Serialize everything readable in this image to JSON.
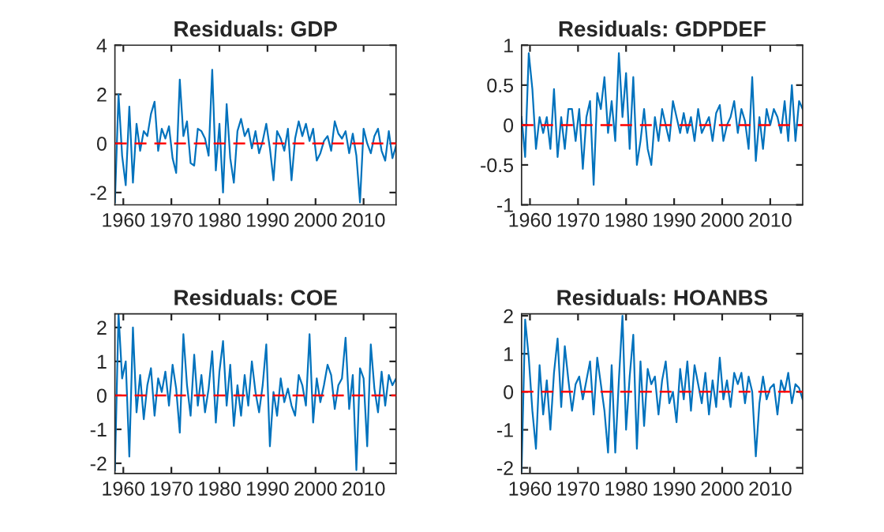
{
  "chart_data": [
    {
      "type": "line",
      "title": "Residuals: GDP",
      "x": [
        1958.25,
        1959,
        1959.75,
        1960.5,
        1961.25,
        1962,
        1962.75,
        1963.5,
        1964.25,
        1965,
        1965.75,
        1966.5,
        1967.25,
        1968,
        1968.75,
        1969.5,
        1970.25,
        1971,
        1971.75,
        1972.5,
        1973.25,
        1974,
        1974.75,
        1975.5,
        1976.25,
        1977,
        1977.75,
        1978.5,
        1979.25,
        1980,
        1980.75,
        1981.5,
        1982.25,
        1983,
        1983.75,
        1984.5,
        1985.25,
        1986,
        1986.75,
        1987.5,
        1988.25,
        1989,
        1989.75,
        1990.5,
        1991.25,
        1992,
        1992.75,
        1993.5,
        1994.25,
        1995,
        1995.75,
        1996.5,
        1997.25,
        1998,
        1998.75,
        1999.5,
        2000.25,
        2001,
        2001.75,
        2002.5,
        2003.25,
        2004,
        2004.75,
        2005.5,
        2006.25,
        2007,
        2007.75,
        2008.5,
        2009.25,
        2010,
        2010.75,
        2011.5,
        2012.25,
        2013,
        2013.75,
        2014.5,
        2015.25,
        2016,
        2016.75
      ],
      "series": [
        {
          "color": "#0072bd",
          "values": [
            -2.4,
            2.0,
            -0.5,
            -1.7,
            1.5,
            -1.6,
            0.8,
            -0.3,
            0.5,
            0.3,
            1.2,
            1.7,
            -0.3,
            0.6,
            0.2,
            0.7,
            -0.6,
            -1.2,
            2.6,
            0.3,
            0.9,
            -0.8,
            -0.9,
            0.6,
            0.5,
            0.2,
            -0.5,
            3.0,
            -1.1,
            0.8,
            -2.0,
            1.6,
            -0.6,
            -1.6,
            0.5,
            1.0,
            0.3,
            0.6,
            -0.2,
            0.5,
            -0.4,
            0.1,
            0.8,
            -0.2,
            -1.5,
            0.5,
            0.2,
            -0.3,
            0.6,
            -1.5,
            0.2,
            0.9,
            0.3,
            0.8,
            0.1,
            0.6,
            -0.7,
            -0.4,
            0.1,
            0.3,
            -0.3,
            0.9,
            0.4,
            0.2,
            0.5,
            -0.4,
            0.4,
            -0.5,
            -2.4,
            0.6,
            0.0,
            -0.4,
            0.3,
            0.6,
            -0.3,
            -0.7,
            0.5,
            -0.6,
            -0.1
          ]
        }
      ],
      "xlim": [
        1958.25,
        2016.75
      ],
      "xticks": [
        1960,
        1970,
        1980,
        1990,
        2000,
        2010
      ],
      "ylim": [
        -2.5,
        4
      ],
      "yticks": [
        -2,
        0,
        2,
        4
      ],
      "ref_lines": [
        {
          "axis": "y",
          "value": 0,
          "color": "#ff0000",
          "line_style": "dashed"
        }
      ],
      "grid": false
    },
    {
      "type": "line",
      "title": "Residuals: GDPDEF",
      "x": [
        1958.25,
        1959,
        1959.75,
        1960.5,
        1961.25,
        1962,
        1962.75,
        1963.5,
        1964.25,
        1965,
        1965.75,
        1966.5,
        1967.25,
        1968,
        1968.75,
        1969.5,
        1970.25,
        1971,
        1971.75,
        1972.5,
        1973.25,
        1974,
        1974.75,
        1975.5,
        1976.25,
        1977,
        1977.75,
        1978.5,
        1979.25,
        1980,
        1980.75,
        1981.5,
        1982.25,
        1983,
        1983.75,
        1984.5,
        1985.25,
        1986,
        1986.75,
        1987.5,
        1988.25,
        1989,
        1989.75,
        1990.5,
        1991.25,
        1992,
        1992.75,
        1993.5,
        1994.25,
        1995,
        1995.75,
        1996.5,
        1997.25,
        1998,
        1998.75,
        1999.5,
        2000.25,
        2001,
        2001.75,
        2002.5,
        2003.25,
        2004,
        2004.75,
        2005.5,
        2006.25,
        2007,
        2007.75,
        2008.5,
        2009.25,
        2010,
        2010.75,
        2011.5,
        2012.25,
        2013,
        2013.75,
        2014.5,
        2015.25,
        2016,
        2016.75
      ],
      "series": [
        {
          "color": "#0072bd",
          "values": [
            0.1,
            -0.4,
            0.9,
            0.45,
            -0.3,
            0.1,
            -0.1,
            0.1,
            -0.3,
            0.45,
            -0.4,
            0.1,
            -0.3,
            0.2,
            0.2,
            -0.2,
            0.2,
            -0.55,
            0.1,
            0.3,
            -0.75,
            0.4,
            0.2,
            0.6,
            -0.1,
            0.3,
            -0.2,
            0.9,
            0.1,
            0.65,
            -0.3,
            0.6,
            -0.5,
            -0.2,
            0.2,
            -0.3,
            -0.5,
            0.1,
            -0.2,
            0.2,
            0.0,
            -0.2,
            0.3,
            0.1,
            -0.1,
            0.15,
            -0.1,
            0.1,
            -0.2,
            0.2,
            -0.1,
            0.0,
            0.1,
            -0.2,
            0.15,
            0.25,
            -0.2,
            0.0,
            0.1,
            0.3,
            -0.1,
            0.2,
            0.05,
            -0.3,
            0.6,
            -0.45,
            0.1,
            -0.3,
            0.2,
            0.0,
            0.2,
            0.1,
            -0.1,
            0.3,
            -0.2,
            0.5,
            -0.2,
            0.3,
            0.2
          ]
        }
      ],
      "xlim": [
        1958.25,
        2016.75
      ],
      "xticks": [
        1960,
        1970,
        1980,
        1990,
        2000,
        2010
      ],
      "ylim": [
        -1,
        1
      ],
      "yticks": [
        -1,
        -0.5,
        0,
        0.5,
        1
      ],
      "ref_lines": [
        {
          "axis": "y",
          "value": 0,
          "color": "#ff0000",
          "line_style": "dashed"
        }
      ],
      "grid": false
    },
    {
      "type": "line",
      "title": "Residuals: COE",
      "x": [
        1958.25,
        1959,
        1959.75,
        1960.5,
        1961.25,
        1962,
        1962.75,
        1963.5,
        1964.25,
        1965,
        1965.75,
        1966.5,
        1967.25,
        1968,
        1968.75,
        1969.5,
        1970.25,
        1971,
        1971.75,
        1972.5,
        1973.25,
        1974,
        1974.75,
        1975.5,
        1976.25,
        1977,
        1977.75,
        1978.5,
        1979.25,
        1980,
        1980.75,
        1981.5,
        1982.25,
        1983,
        1983.75,
        1984.5,
        1985.25,
        1986,
        1986.75,
        1987.5,
        1988.25,
        1989,
        1989.75,
        1990.5,
        1991.25,
        1992,
        1992.75,
        1993.5,
        1994.25,
        1995,
        1995.75,
        1996.5,
        1997.25,
        1998,
        1998.75,
        1999.5,
        2000.25,
        2001,
        2001.75,
        2002.5,
        2003.25,
        2004,
        2004.75,
        2005.5,
        2006.25,
        2007,
        2007.75,
        2008.5,
        2009.25,
        2010,
        2010.75,
        2011.5,
        2012.25,
        2013,
        2013.75,
        2014.5,
        2015.25,
        2016,
        2016.75
      ],
      "series": [
        {
          "color": "#0072bd",
          "values": [
            -2.2,
            2.4,
            0.5,
            1.0,
            -1.8,
            2.0,
            -0.5,
            0.6,
            -0.7,
            0.3,
            0.8,
            -0.6,
            0.5,
            0.1,
            0.7,
            -0.3,
            0.9,
            0.2,
            -1.1,
            1.8,
            0.3,
            -0.6,
            1.2,
            -0.3,
            0.6,
            -0.5,
            0.2,
            1.3,
            -0.8,
            0.7,
            1.6,
            -0.3,
            0.9,
            -0.9,
            0.3,
            -0.6,
            0.6,
            -0.3,
            1.0,
            0.1,
            -0.5,
            0.3,
            1.5,
            -1.5,
            0.1,
            -0.6,
            0.5,
            -0.2,
            0.2,
            -0.3,
            -0.6,
            0.6,
            0.3,
            -0.3,
            1.8,
            -0.8,
            0.5,
            -0.2,
            0.3,
            0.9,
            0.6,
            -0.4,
            0.3,
            0.5,
            1.7,
            -0.4,
            0.6,
            -2.2,
            0.8,
            0.5,
            -1.5,
            1.5,
            0.2,
            -0.5,
            0.7,
            -0.3,
            0.6,
            0.3,
            0.5
          ]
        }
      ],
      "xlim": [
        1958.25,
        2016.75
      ],
      "xticks": [
        1960,
        1970,
        1980,
        1990,
        2000,
        2010
      ],
      "ylim": [
        -2.3,
        2.4
      ],
      "yticks": [
        -2,
        -1,
        0,
        1,
        2
      ],
      "ref_lines": [
        {
          "axis": "y",
          "value": 0,
          "color": "#ff0000",
          "line_style": "dashed"
        }
      ],
      "grid": false
    },
    {
      "type": "line",
      "title": "Residuals: HOANBS",
      "x": [
        1958.25,
        1959,
        1959.75,
        1960.5,
        1961.25,
        1962,
        1962.75,
        1963.5,
        1964.25,
        1965,
        1965.75,
        1966.5,
        1967.25,
        1968,
        1968.75,
        1969.5,
        1970.25,
        1971,
        1971.75,
        1972.5,
        1973.25,
        1974,
        1974.75,
        1975.5,
        1976.25,
        1977,
        1977.75,
        1978.5,
        1979.25,
        1980,
        1980.75,
        1981.5,
        1982.25,
        1983,
        1983.75,
        1984.5,
        1985.25,
        1986,
        1986.75,
        1987.5,
        1988.25,
        1989,
        1989.75,
        1990.5,
        1991.25,
        1992,
        1992.75,
        1993.5,
        1994.25,
        1995,
        1995.75,
        1996.5,
        1997.25,
        1998,
        1998.75,
        1999.5,
        2000.25,
        2001,
        2001.75,
        2002.5,
        2003.25,
        2004,
        2004.75,
        2005.5,
        2006.25,
        2007,
        2007.75,
        2008.5,
        2009.25,
        2010,
        2010.75,
        2011.5,
        2012.25,
        2013,
        2013.75,
        2014.5,
        2015.25,
        2016,
        2016.75
      ],
      "series": [
        {
          "color": "#0072bd",
          "values": [
            -2.1,
            1.9,
            0.9,
            -0.5,
            -1.5,
            0.7,
            -0.6,
            0.3,
            -1.0,
            0.5,
            1.4,
            -0.4,
            1.2,
            0.3,
            -0.5,
            0.2,
            0.4,
            -0.2,
            0.3,
            0.8,
            -0.6,
            0.9,
            0.2,
            -0.5,
            -1.6,
            0.7,
            -1.6,
            0.3,
            2.0,
            -1.0,
            0.4,
            1.5,
            -1.5,
            0.8,
            -0.9,
            0.6,
            0.2,
            0.4,
            -0.6,
            0.3,
            0.8,
            -0.3,
            0.0,
            -0.8,
            0.6,
            -0.2,
            0.8,
            -0.5,
            0.7,
            0.2,
            -0.3,
            0.5,
            -0.6,
            0.3,
            -0.4,
            0.9,
            -0.2,
            0.3,
            -0.4,
            0.5,
            0.2,
            0.5,
            -0.3,
            0.4,
            0.0,
            -1.7,
            -0.3,
            0.4,
            -0.2,
            0.1,
            0.2,
            -0.6,
            0.3,
            0.0,
            0.5,
            -0.3,
            0.2,
            0.1,
            -0.2
          ]
        }
      ],
      "xlim": [
        1958.25,
        2016.75
      ],
      "xticks": [
        1960,
        1970,
        1980,
        1990,
        2000,
        2010
      ],
      "ylim": [
        -2.15,
        2.05
      ],
      "yticks": [
        -2,
        -1,
        0,
        1,
        2
      ],
      "ref_lines": [
        {
          "axis": "y",
          "value": 0,
          "color": "#ff0000",
          "line_style": "dashed"
        }
      ],
      "grid": false
    }
  ]
}
